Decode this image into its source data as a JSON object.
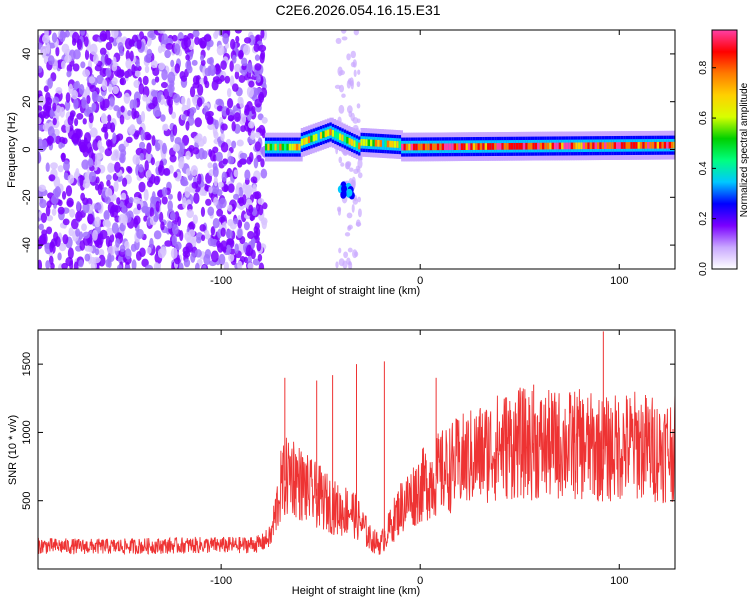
{
  "title": "C2E6.2026.054.16.15.E31",
  "chart_data": [
    {
      "type": "heatmap",
      "title": "C2E6.2026.054.16.15.E31",
      "xlabel": "Height of straight line (km)",
      "ylabel": "Frequency (Hz)",
      "xlim": [
        -192,
        128
      ],
      "ylim": [
        -50,
        50
      ],
      "xticks": [
        -100,
        0,
        100
      ],
      "yticks": [
        -40,
        -20,
        0,
        20,
        40
      ],
      "colorbar": {
        "label": "Normalized spectral amplitude",
        "range": [
          0.0,
          0.95
        ],
        "ticks": [
          "0.0",
          "0.2",
          "0.4",
          "0.6",
          "0.8"
        ],
        "tick_values": [
          0.0,
          0.2,
          0.4,
          0.6,
          0.8
        ],
        "colors": [
          "#ffffff",
          "#c9a8ff",
          "#7a00ff",
          "#0000ff",
          "#00c8ff",
          "#00ff7f",
          "#00d000",
          "#d8ff00",
          "#ffd000",
          "#ff7a00",
          "#ff0000",
          "#ff3fa6"
        ]
      }
    },
    {
      "type": "line",
      "xlabel": "Height of straight line (km)",
      "ylabel": "SNR (10 * v/v)",
      "xlim": [
        -192,
        128
      ],
      "ylim": [
        0,
        1750
      ],
      "xticks": [
        -100,
        0,
        100
      ],
      "yticks": [
        500,
        1000,
        1500
      ],
      "series": [
        {
          "name": "SNR",
          "color": "#ee3333",
          "x": [
            -192,
            -170,
            -150,
            -130,
            -110,
            -90,
            -80,
            -75,
            -70,
            -65,
            -60,
            -55,
            -50,
            -45,
            -40,
            -35,
            -30,
            -25,
            -20,
            -15,
            -10,
            -5,
            0,
            5,
            10,
            20,
            30,
            40,
            50,
            60,
            70,
            80,
            90,
            95,
            100,
            110,
            120,
            128
          ],
          "values": [
            170,
            165,
            165,
            170,
            175,
            175,
            185,
            240,
            600,
            720,
            620,
            560,
            520,
            470,
            420,
            440,
            340,
            220,
            180,
            310,
            450,
            520,
            600,
            650,
            700,
            780,
            840,
            900,
            920,
            900,
            910,
            910,
            880,
            870,
            900,
            910,
            870,
            890
          ]
        }
      ]
    }
  ]
}
